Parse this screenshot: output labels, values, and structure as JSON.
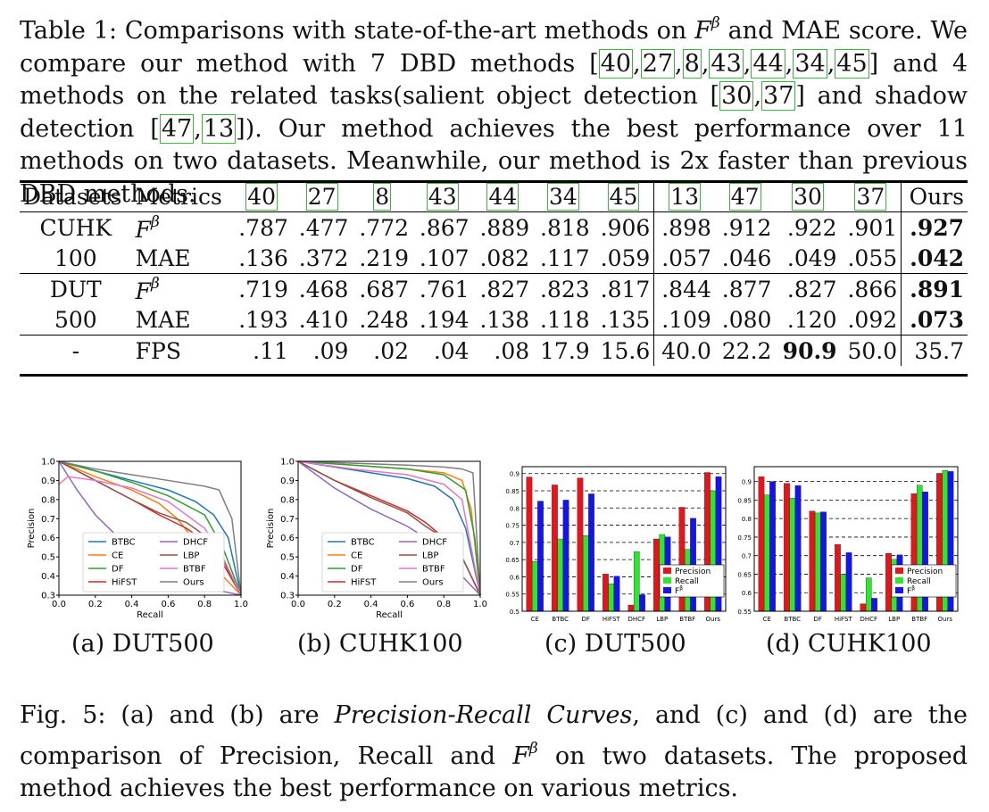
{
  "table_caption": {
    "part1": "Table 1: Comparisons with state-of-the-art methods on ",
    "f": "F",
    "beta": "β",
    "part2": " and MAE score. We compare our method with 7 DBD methods ",
    "cites_a": [
      "40",
      "27",
      "8",
      "43",
      "44",
      "34",
      "45"
    ],
    "part3": " and 4 methods on the related tasks(salient object detection ",
    "cites_b": [
      "30",
      "37"
    ],
    "part4": " and shadow detection ",
    "cites_c": [
      "47",
      "13"
    ],
    "part5": "). Our method achieves the best performance over 11 methods on two datasets. Meanwhile, our method is 2x faster than previous DBD methods."
  },
  "table": {
    "header": [
      "Datasets",
      "Metrics",
      "[40]",
      "[27]",
      "[8]",
      "[43]",
      "[44]",
      "[34]",
      "[45]",
      "[13]",
      "[47]",
      "[30]",
      "[37]",
      "Ours"
    ],
    "rows": [
      {
        "dataset": "CUHK",
        "metric": "F",
        "sup": "β",
        "values": [
          ".787",
          ".477",
          ".772",
          ".867",
          ".889",
          ".818",
          ".906",
          ".898",
          ".912",
          ".922",
          ".901",
          ".927"
        ],
        "bold": [
          11
        ]
      },
      {
        "dataset": "100",
        "metric": "MAE",
        "sup": "",
        "values": [
          ".136",
          ".372",
          ".219",
          ".107",
          ".082",
          ".117",
          ".059",
          ".057",
          ".046",
          ".049",
          ".055",
          ".042"
        ],
        "bold": [
          11
        ]
      },
      {
        "dataset": "DUT",
        "metric": "F",
        "sup": "β",
        "values": [
          ".719",
          ".468",
          ".687",
          ".761",
          ".827",
          ".823",
          ".817",
          ".844",
          ".877",
          ".827",
          ".866",
          ".891"
        ],
        "bold": [
          11
        ]
      },
      {
        "dataset": "500",
        "metric": "MAE",
        "sup": "",
        "values": [
          ".193",
          ".410",
          ".248",
          ".194",
          ".138",
          ".118",
          ".135",
          ".109",
          ".080",
          ".120",
          ".092",
          ".073"
        ],
        "bold": [
          11
        ]
      },
      {
        "dataset": "-",
        "metric": "FPS",
        "sup": "",
        "values": [
          ".11",
          ".09",
          ".02",
          ".04",
          ".08",
          "17.9",
          "15.6",
          "40.0",
          "22.2",
          "90.9",
          "50.0",
          "35.7"
        ],
        "bold": [
          9
        ]
      }
    ]
  },
  "sublabels": [
    "(a) DUT500",
    "(b) CUHK100",
    "(c) DUT500",
    "(d) CUHK100"
  ],
  "figure_caption": {
    "part1": "Fig. 5: (a) and (b) are ",
    "italic": "Precision-Recall Curves",
    "part2": ", and (c) and (d) are the comparison of Precision, Recall and ",
    "f": "F",
    "beta": "β",
    "part3": " on two datasets. The proposed method achieves the best performance on various metrics."
  },
  "colors": {
    "BTBC": "#1f77b4",
    "CE": "#ff7f0e",
    "DF": "#2ca02c",
    "HiFST": "#d62728",
    "DHCF": "#9467bd",
    "LBP": "#8c564b",
    "BTBF": "#e377c2",
    "Ours": "#7f7f7f",
    "precision": "#e8141c",
    "recall": "#2ee62e",
    "fbeta": "#1414ee"
  },
  "chart_data": [
    {
      "type": "line",
      "panel": "(a) DUT500",
      "xlabel": "Recall",
      "ylabel": "Precision",
      "xlim": [
        0,
        1
      ],
      "ylim": [
        0.3,
        1
      ],
      "xticks": [
        "0.0",
        "0.2",
        "0.4",
        "0.6",
        "0.8",
        "1.0"
      ],
      "yticks": [
        "0.3",
        "0.4",
        "0.5",
        "0.6",
        "0.7",
        "0.8",
        "0.9",
        "1.0"
      ],
      "legend": [
        "BTBC",
        "CE",
        "DF",
        "HiFST",
        "DHCF",
        "LBP",
        "BTBF",
        "Ours"
      ],
      "series": [
        {
          "name": "BTBC",
          "x": [
            0,
            0.2,
            0.4,
            0.6,
            0.75,
            0.85,
            0.93,
            1
          ],
          "y": [
            1,
            0.95,
            0.9,
            0.85,
            0.79,
            0.72,
            0.6,
            0.3
          ]
        },
        {
          "name": "CE",
          "x": [
            0,
            0.2,
            0.4,
            0.55,
            0.65,
            0.75,
            0.85,
            1
          ],
          "y": [
            1,
            0.92,
            0.85,
            0.78,
            0.7,
            0.58,
            0.45,
            0.3
          ]
        },
        {
          "name": "DF",
          "x": [
            0,
            0.2,
            0.4,
            0.6,
            0.8,
            0.9,
            1
          ],
          "y": [
            1,
            0.95,
            0.89,
            0.82,
            0.72,
            0.55,
            0.3
          ]
        },
        {
          "name": "HiFST",
          "x": [
            0,
            0.2,
            0.4,
            0.55,
            0.7,
            0.85,
            1
          ],
          "y": [
            1,
            0.9,
            0.8,
            0.72,
            0.65,
            0.55,
            0.3
          ]
        },
        {
          "name": "DHCF",
          "x": [
            0,
            0.1,
            0.2,
            0.35,
            0.5,
            0.65,
            0.8,
            1
          ],
          "y": [
            1,
            0.85,
            0.72,
            0.58,
            0.46,
            0.38,
            0.34,
            0.3
          ]
        },
        {
          "name": "LBP",
          "x": [
            0,
            0.2,
            0.4,
            0.55,
            0.7,
            0.85,
            1
          ],
          "y": [
            1,
            0.9,
            0.8,
            0.73,
            0.68,
            0.58,
            0.3
          ]
        },
        {
          "name": "BTBF",
          "x": [
            0,
            0.05,
            0.2,
            0.4,
            0.6,
            0.8,
            0.9,
            1
          ],
          "y": [
            0.88,
            0.92,
            0.9,
            0.86,
            0.79,
            0.65,
            0.5,
            0.3
          ]
        },
        {
          "name": "Ours",
          "x": [
            0,
            0.2,
            0.4,
            0.6,
            0.8,
            0.88,
            0.95,
            1
          ],
          "y": [
            1,
            0.96,
            0.93,
            0.9,
            0.87,
            0.85,
            0.7,
            0.3
          ]
        }
      ]
    },
    {
      "type": "line",
      "panel": "(b) CUHK100",
      "xlabel": "Recall",
      "ylabel": "Precision",
      "xlim": [
        0,
        1
      ],
      "ylim": [
        0.3,
        1
      ],
      "xticks": [
        "0.0",
        "0.2",
        "0.4",
        "0.6",
        "0.8",
        "1.0"
      ],
      "yticks": [
        "0.3",
        "0.4",
        "0.5",
        "0.6",
        "0.7",
        "0.8",
        "0.9",
        "1.0"
      ],
      "legend": [
        "BTBC",
        "CE",
        "DF",
        "HiFST",
        "DHCF",
        "LBP",
        "BTBF",
        "Ours"
      ],
      "series": [
        {
          "name": "BTBC",
          "x": [
            0,
            0.2,
            0.4,
            0.6,
            0.75,
            0.85,
            0.92,
            1
          ],
          "y": [
            1,
            0.97,
            0.94,
            0.91,
            0.87,
            0.8,
            0.65,
            0.3
          ]
        },
        {
          "name": "CE",
          "x": [
            0,
            0.3,
            0.6,
            0.8,
            0.9,
            0.95,
            1
          ],
          "y": [
            1,
            0.98,
            0.96,
            0.94,
            0.9,
            0.75,
            0.3
          ]
        },
        {
          "name": "DF",
          "x": [
            0,
            0.3,
            0.6,
            0.8,
            0.92,
            0.97,
            1
          ],
          "y": [
            1,
            0.98,
            0.96,
            0.93,
            0.85,
            0.6,
            0.3
          ]
        },
        {
          "name": "HiFST",
          "x": [
            0,
            0.2,
            0.4,
            0.6,
            0.7,
            0.8,
            0.9,
            1
          ],
          "y": [
            1,
            0.9,
            0.82,
            0.74,
            0.68,
            0.6,
            0.5,
            0.3
          ]
        },
        {
          "name": "DHCF",
          "x": [
            0,
            0.2,
            0.4,
            0.6,
            0.7,
            0.8,
            0.9,
            1
          ],
          "y": [
            1,
            0.86,
            0.75,
            0.66,
            0.6,
            0.5,
            0.4,
            0.3
          ]
        },
        {
          "name": "LBP",
          "x": [
            0,
            0.2,
            0.4,
            0.6,
            0.7,
            0.8,
            0.9,
            1
          ],
          "y": [
            1,
            0.9,
            0.81,
            0.73,
            0.66,
            0.6,
            0.5,
            0.3
          ]
        },
        {
          "name": "BTBF",
          "x": [
            0,
            0.3,
            0.6,
            0.8,
            0.9,
            1
          ],
          "y": [
            1,
            0.96,
            0.93,
            0.88,
            0.8,
            0.3
          ]
        },
        {
          "name": "Ours",
          "x": [
            0,
            0.3,
            0.6,
            0.8,
            0.9,
            0.96,
            1
          ],
          "y": [
            1,
            0.99,
            0.98,
            0.97,
            0.96,
            0.94,
            0.3
          ]
        }
      ]
    },
    {
      "type": "bar",
      "panel": "(c) DUT500",
      "ylim": [
        0.5,
        0.92
      ],
      "yticks": [
        "0.5",
        "0.55",
        "0.6",
        "0.65",
        "0.7",
        "0.75",
        "0.8",
        "0.85",
        "0.9"
      ],
      "categories": [
        "CE",
        "BTBC",
        "DF",
        "HiFST",
        "DHCF",
        "LBP",
        "BTBF",
        "Ours"
      ],
      "legend": [
        "Precision",
        "Recall",
        "F"
      ],
      "series": [
        {
          "name": "Precision",
          "values": [
            0.89,
            0.867,
            0.887,
            0.608,
            0.518,
            0.71,
            0.802,
            0.903
          ]
        },
        {
          "name": "Recall",
          "values": [
            0.645,
            0.71,
            0.72,
            0.58,
            0.673,
            0.723,
            0.68,
            0.85
          ]
        },
        {
          "name": "F",
          "values": [
            0.82,
            0.823,
            0.841,
            0.602,
            0.548,
            0.716,
            0.77,
            0.891
          ]
        }
      ]
    },
    {
      "type": "bar",
      "panel": "(d) CUHK100",
      "ylim": [
        0.55,
        0.94
      ],
      "yticks": [
        "0.55",
        "0.6",
        "0.65",
        "0.7",
        "0.75",
        "0.8",
        "0.85",
        "0.9"
      ],
      "categories": [
        "CE",
        "BTBC",
        "DF",
        "HiFST",
        "DHCF",
        "LBP",
        "BTBF",
        "Ours"
      ],
      "legend": [
        "Precision",
        "Recall",
        "F"
      ],
      "series": [
        {
          "name": "Precision",
          "values": [
            0.913,
            0.895,
            0.82,
            0.73,
            0.57,
            0.706,
            0.867,
            0.922
          ]
        },
        {
          "name": "Recall",
          "values": [
            0.864,
            0.855,
            0.815,
            0.65,
            0.64,
            0.69,
            0.89,
            0.93
          ]
        },
        {
          "name": "F",
          "values": [
            0.9,
            0.889,
            0.818,
            0.708,
            0.585,
            0.702,
            0.872,
            0.927
          ]
        }
      ]
    }
  ]
}
